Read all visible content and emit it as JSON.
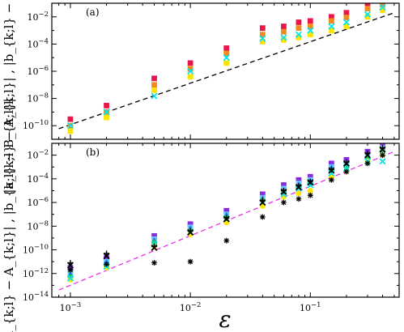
{
  "figure": {
    "xlabel": "ε",
    "ylabel": "|a_{k;l} − A_{k;l}| , |b_{k;l} − B_{k;l}|"
  },
  "colors": {
    "red": "#e8174a",
    "orange": "#f28a1e",
    "yellow": "#ffe400",
    "cyan": "#00e5ee",
    "green": "#22c55e",
    "blue": "#2b62e0",
    "purple": "#8a2be2",
    "lightblue": "#66ccff",
    "black": "#000000",
    "fit_a": "#000000",
    "fit_b": "#e632e6"
  },
  "chart_data": [
    {
      "type": "scatter",
      "panel_label": "(a)",
      "xscale": "log",
      "yscale": "log",
      "xlim": [
        0.0007,
        0.55
      ],
      "ylim": [
        1e-11,
        0.1
      ],
      "x_ticks": [
        0.001,
        0.01,
        0.1
      ],
      "y_ticks": [
        1e-10,
        1e-08,
        1e-06,
        0.0001,
        0.01
      ],
      "y_tick_labels": [
        "10^-10",
        "10^-8",
        "10^-6",
        "10^-4",
        "10^-2"
      ],
      "x": [
        0.001,
        0.002,
        0.005,
        0.01,
        0.02,
        0.04,
        0.06,
        0.08,
        0.1,
        0.15,
        0.2,
        0.3,
        0.4
      ],
      "series": [
        {
          "color": "red",
          "marker": "square",
          "values": [
            3e-10,
            3e-09,
            3e-07,
            4e-06,
            5e-05,
            0.0015,
            0.002,
            0.004,
            0.005,
            0.01,
            0.02,
            0.1,
            0.2
          ]
        },
        {
          "color": "orange",
          "marker": "square",
          "values": [
            1e-10,
            1e-09,
            1e-07,
            1.5e-06,
            2e-05,
            0.0005,
            0.0008,
            0.0015,
            0.002,
            0.005,
            0.009,
            0.04,
            0.08
          ]
        },
        {
          "color": "yellow",
          "marker": "square",
          "values": [
            4e-11,
            4e-10,
            4e-08,
            4e-07,
            4e-06,
            0.00015,
            0.0002,
            0.0003,
            0.0005,
            0.001,
            0.002,
            0.01,
            0.03
          ]
        },
        {
          "color": "cyan",
          "marker": "x",
          "values": [
            1e-10,
            1e-09,
            1.5e-08,
            1e-06,
            1e-05,
            0.00025,
            0.0003,
            0.0005,
            0.001,
            0.002,
            0.004,
            0.015,
            0.05
          ]
        }
      ],
      "fit_line": {
        "color": "fit_a",
        "style": "dashed",
        "x": [
          0.0008,
          0.5
        ],
        "values": [
          6e-11,
          0.02
        ]
      }
    },
    {
      "type": "scatter",
      "panel_label": "(b)",
      "xscale": "log",
      "yscale": "log",
      "xlim": [
        0.0007,
        0.55
      ],
      "ylim": [
        1e-14,
        0.1
      ],
      "x_ticks": [
        0.001,
        0.01,
        0.1
      ],
      "x_tick_labels": [
        "10^-3",
        "10^-2",
        "10^-1"
      ],
      "y_ticks": [
        1e-14,
        1e-12,
        1e-10,
        1e-08,
        1e-06,
        0.0001,
        0.01
      ],
      "y_tick_labels": [
        "10^-14",
        "10^-12",
        "10^-10",
        "10^-8",
        "10^-6",
        "10^-4",
        "10^-2"
      ],
      "x": [
        0.001,
        0.002,
        0.005,
        0.01,
        0.02,
        0.04,
        0.06,
        0.08,
        0.1,
        0.15,
        0.2,
        0.3,
        0.4
      ],
      "series": [
        {
          "color": "purple",
          "marker": "square",
          "values": [
            3e-12,
            2e-11,
            1.5e-09,
            1.5e-08,
            2e-07,
            5e-06,
            3e-05,
            8e-05,
            0.00015,
            0.002,
            0.004,
            0.02,
            0.06
          ]
        },
        {
          "color": "lightblue",
          "marker": "square",
          "values": [
            1e-12,
            1e-11,
            8e-10,
            8e-09,
            1e-07,
            2.5e-06,
            1.5e-05,
            4e-05,
            8e-05,
            0.001,
            0.002,
            0.01,
            0.04
          ]
        },
        {
          "color": "blue",
          "marker": "triangle",
          "values": [
            8e-13,
            8e-12,
            6e-10,
            6e-09,
            8e-08,
            2e-06,
            1e-05,
            3e-05,
            6e-05,
            0.0008,
            0.0015,
            0.008,
            0.03
          ]
        },
        {
          "color": "green",
          "marker": "circle",
          "values": [
            5e-13,
            5e-12,
            4e-10,
            4e-09,
            5e-08,
            1.5e-06,
            8e-06,
            2e-05,
            4e-05,
            0.0005,
            0.001,
            0.006,
            0.02
          ]
        },
        {
          "color": "yellow",
          "marker": "circle",
          "values": [
            3e-13,
            3e-12,
            2e-10,
            2e-09,
            2e-08,
            5e-07,
            3e-06,
            6e-06,
            1e-05,
            0.00015,
            0.0005,
            0.003,
            0.01
          ]
        },
        {
          "color": "cyan",
          "marker": "x",
          "values": [
            4e-13,
            4e-12,
            3e-10,
            3e-09,
            4e-08,
            1e-06,
            5e-06,
            1.5e-05,
            3e-05,
            0.0003,
            0.0008,
            0.003,
            0.003
          ]
        },
        {
          "color": "black",
          "marker": "x",
          "values": [
            5e-12,
            3e-11,
            1.5e-10,
            3e-09,
            4e-08,
            1e-06,
            8e-06,
            2e-05,
            5e-05,
            0.0005,
            0.002,
            0.01,
            0.03
          ]
        },
        {
          "color": "black",
          "marker": "plus",
          "values": [
            8e-12,
            5e-11,
            2e-10,
            4e-09,
            5e-08,
            1.5e-06,
            1e-05,
            2.5e-05,
            6e-05,
            0.0006,
            0.0025,
            0.015,
            0.04
          ]
        },
        {
          "color": "black",
          "marker": "asterisk",
          "values": [
            2e-12,
            6e-12,
            8e-12,
            1e-11,
            6e-10,
            6e-08,
            1e-06,
            2e-06,
            4e-06,
            8e-05,
            0.0004,
            0.002,
            0.01
          ]
        }
      ],
      "fit_line": {
        "color": "fit_b",
        "style": "dashed",
        "x": [
          0.0008,
          0.5
        ],
        "values": [
          4e-14,
          0.02
        ]
      }
    }
  ]
}
